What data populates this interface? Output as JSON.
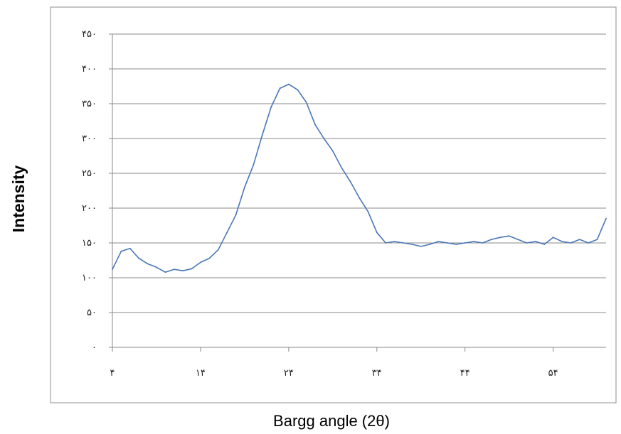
{
  "chart_data": {
    "type": "line",
    "title": "",
    "xlabel": "Bargg angle (2θ)",
    "ylabel": "Intensity",
    "xlim": [
      4,
      60
    ],
    "ylim": [
      0,
      450
    ],
    "grid": "horizontal",
    "x_ticks": [
      {
        "value": 4,
        "label": "۴"
      },
      {
        "value": 14,
        "label": "۱۴"
      },
      {
        "value": 24,
        "label": "۲۴"
      },
      {
        "value": 34,
        "label": "۳۴"
      },
      {
        "value": 44,
        "label": "۴۴"
      },
      {
        "value": 54,
        "label": "۵۴"
      }
    ],
    "y_ticks": [
      {
        "value": 0,
        "label": "۰"
      },
      {
        "value": 50,
        "label": "۵۰"
      },
      {
        "value": 100,
        "label": "۱۰۰"
      },
      {
        "value": 150,
        "label": "۱۵۰"
      },
      {
        "value": 200,
        "label": "۲۰۰"
      },
      {
        "value": 250,
        "label": "۲۵۰"
      },
      {
        "value": 300,
        "label": "۳۰۰"
      },
      {
        "value": 350,
        "label": "۳۵۰"
      },
      {
        "value": 400,
        "label": "۴۰۰"
      },
      {
        "value": 450,
        "label": "۴۵۰"
      }
    ],
    "series": [
      {
        "color": "#4a76b8",
        "x": [
          4,
          5,
          6,
          7,
          8,
          9,
          10,
          11,
          12,
          13,
          14,
          15,
          16,
          17,
          18,
          19,
          20,
          21,
          22,
          23,
          24,
          25,
          26,
          27,
          28,
          29,
          30,
          31,
          32,
          33,
          34,
          35,
          36,
          37,
          38,
          39,
          40,
          41,
          42,
          43,
          44,
          45,
          46,
          47,
          48,
          49,
          50,
          51,
          52,
          53,
          54,
          55,
          56,
          57,
          58,
          59,
          60
        ],
        "y": [
          112,
          138,
          142,
          128,
          120,
          115,
          108,
          112,
          110,
          113,
          122,
          128,
          140,
          165,
          190,
          230,
          262,
          305,
          345,
          372,
          378,
          370,
          352,
          320,
          300,
          282,
          258,
          238,
          215,
          195,
          165,
          150,
          152,
          150,
          148,
          145,
          148,
          152,
          150,
          148,
          150,
          152,
          150,
          155,
          158,
          160,
          155,
          150,
          152,
          148,
          158,
          152,
          150,
          155,
          150,
          155,
          185
        ]
      }
    ]
  }
}
